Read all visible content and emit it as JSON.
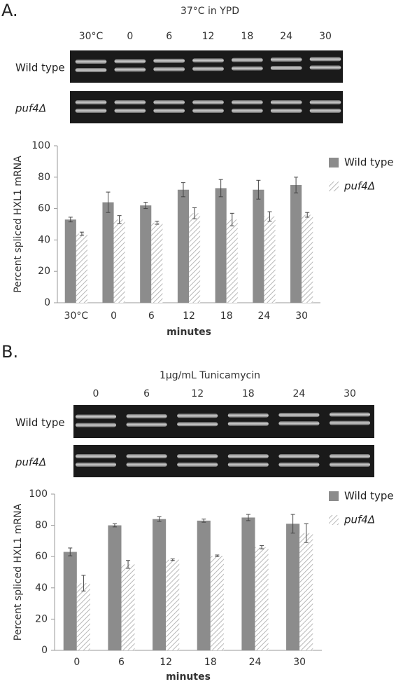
{
  "chart_data": [
    {
      "type": "bar",
      "panel_label": "A.",
      "title": "37°C in YPD",
      "gel_lanes": [
        "30°C",
        "0",
        "6",
        "12",
        "18",
        "24",
        "30"
      ],
      "gel_rows": [
        "Wild type",
        "puf4Δ"
      ],
      "categories": [
        "30°C",
        "0",
        "6",
        "12",
        "18",
        "24",
        "30"
      ],
      "series": [
        {
          "name": "Wild type",
          "color": "#8c8c8c",
          "values": [
            53,
            64,
            62,
            72,
            73,
            72,
            75
          ],
          "errors": [
            1.5,
            6.5,
            2,
            4.5,
            5.5,
            6,
            5
          ]
        },
        {
          "name": "puf4Δ",
          "color": "#bdbdbd",
          "pattern": "hatch",
          "values": [
            44,
            53,
            51,
            57,
            53,
            55,
            56
          ],
          "errors": [
            1,
            2.5,
            1,
            3.5,
            4,
            3,
            1.5
          ]
        }
      ],
      "xlabel": "minutes",
      "ylabel": "Percent spliced HXL1 mRNA",
      "ylim": [
        0,
        100
      ],
      "yticks": [
        0,
        20,
        40,
        60,
        80,
        100
      ],
      "legend": "right"
    },
    {
      "type": "bar",
      "panel_label": "B.",
      "title": "1μg/mL Tunicamycin",
      "gel_lanes": [
        "0",
        "6",
        "12",
        "18",
        "24",
        "30"
      ],
      "gel_rows": [
        "Wild type",
        "puf4Δ"
      ],
      "categories": [
        "0",
        "6",
        "12",
        "18",
        "24",
        "30"
      ],
      "series": [
        {
          "name": "Wild type",
          "color": "#8c8c8c",
          "values": [
            63,
            80,
            84,
            83,
            85,
            81
          ],
          "errors": [
            2.5,
            1,
            1.5,
            1,
            2,
            6
          ]
        },
        {
          "name": "puf4Δ",
          "color": "#bdbdbd",
          "pattern": "hatch",
          "values": [
            43,
            55,
            58,
            60.5,
            66,
            75
          ],
          "errors": [
            5,
            2.5,
            0.5,
            0.5,
            1,
            6
          ]
        }
      ],
      "xlabel": "minutes",
      "ylabel": "Percent spliced HXL1 mRNA",
      "ylim": [
        0,
        100
      ],
      "yticks": [
        0,
        20,
        40,
        60,
        80,
        100
      ],
      "legend": "right"
    }
  ]
}
